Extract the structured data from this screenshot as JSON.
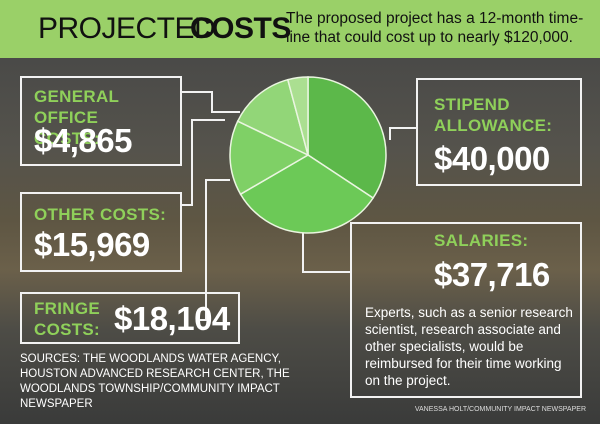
{
  "chart_data": {
    "type": "pie",
    "title": [
      "PROJECTED",
      "COSTS"
    ],
    "subtitle": "The proposed project has a 12-month time-line that could cost up to nearly $120,000.",
    "categories": [
      "STIPEND ALLOWANCE:",
      "SALARIES:",
      "FRINGE COSTS:",
      "OTHER COSTS:",
      "GENERAL OFFICE COSTS:"
    ],
    "values": [
      40000,
      37716,
      18104,
      15969,
      4865
    ],
    "value_labels": [
      "$40,000",
      "$37,716",
      "$18,104",
      "$15,969",
      "$4,865"
    ],
    "colors": [
      "#5cb84a",
      "#6cc957",
      "#7fd066",
      "#92d678",
      "#abdf91"
    ],
    "annotation": "Experts, such as a senior research scientist, research associate and other specialists, would be reimbursed for their time working on the project.",
    "source": "SOURCES: THE WOODLANDS WATER AGENCY, HOUSTON ADVANCED RESEARCH CENTER, THE WOODLANDS TOWNSHIP/COMMUNITY IMPACT NEWSPAPER",
    "credit": "VANESSA HOLT/COMMUNITY IMPACT NEWSPAPER"
  }
}
